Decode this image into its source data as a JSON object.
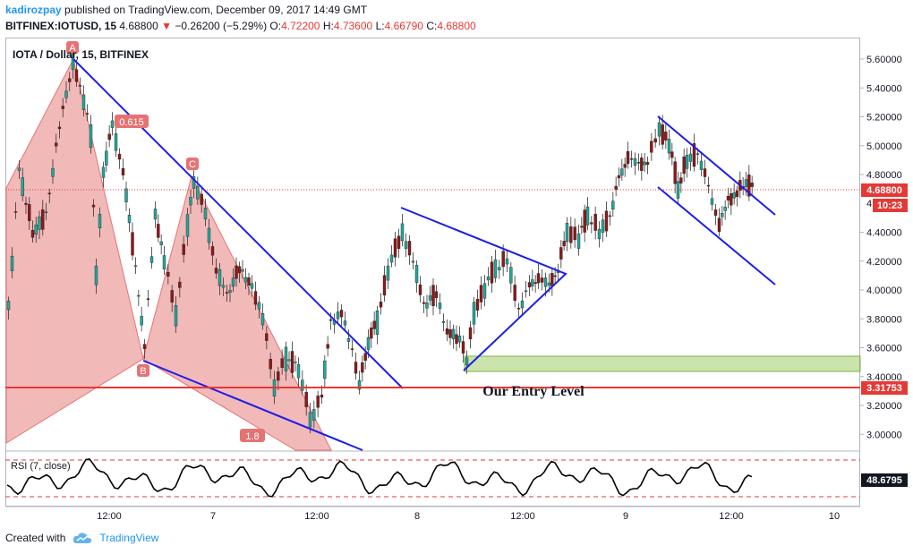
{
  "header": {
    "author": "kadirozpay",
    "published_text": "published on TradingView.com, December 09, 2017 14:49 GMT",
    "symbol": "BITFINEX:IOTUSD, 15",
    "last": "4.68800",
    "change": "−0.26200 (−5.29%)",
    "open_label": "O:",
    "open": "4.72200",
    "high_label": "H:",
    "high": "4.73600",
    "low_label": "L:",
    "low": "4.66790",
    "close_label": "C:",
    "close": "4.68800"
  },
  "chart": {
    "legend": "IOTA / Dollar, 15, BITFINEX",
    "price_axis": [
      "5.60000",
      "5.40000",
      "5.20000",
      "5.00000",
      "4.80000",
      "4.60000",
      "4.40000",
      "4.20000",
      "4.00000",
      "3.80000",
      "3.60000",
      "3.40000",
      "3.20000",
      "3.00000"
    ],
    "price_axis_partial": "4",
    "time_axis": [
      "12:00",
      "7",
      "12:00",
      "8",
      "12:00",
      "9",
      "12:00",
      "10"
    ],
    "current_price_label": "4.68800",
    "countdown_label": "10:23",
    "entry_price_label": "3.31753",
    "entry_text": "Our Entry Level",
    "pattern_labels": {
      "A": "A",
      "B": "B",
      "C": "C",
      "fib1": "0.615",
      "fib2": "1.8"
    },
    "rsi_legend": "RSI (7, close)",
    "rsi_value": "48.6795",
    "colors": {
      "entry_line": "#e53935",
      "trend_lines": "#1e1ee6",
      "pattern_fill": "#e57373",
      "demand_zone": "#8bc34a",
      "up_candle": "#26a69a",
      "down_candle": "#8b1a1a"
    }
  },
  "footer": {
    "created_with": "Created with",
    "brand": "TradingView"
  }
}
